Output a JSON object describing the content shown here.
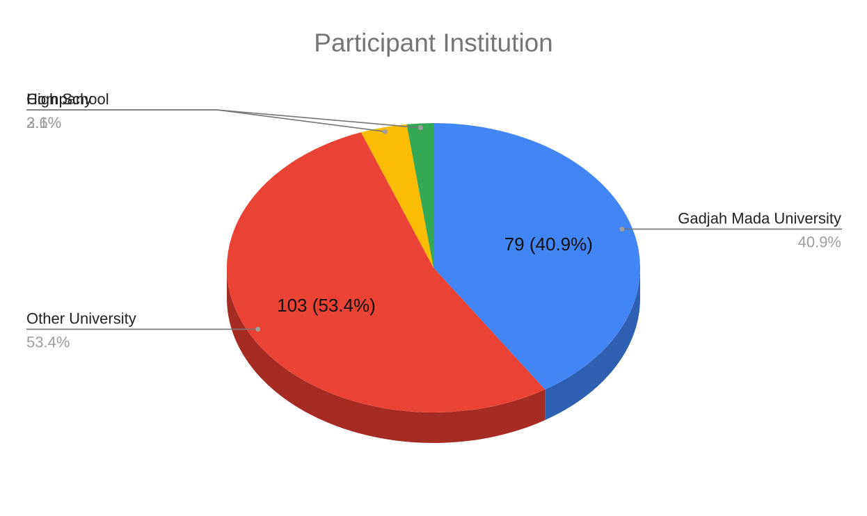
{
  "chart_data": {
    "type": "pie",
    "style": "3d",
    "title": "Participant Institution",
    "slices": [
      {
        "label": "Gadjah Mada University",
        "value": 79,
        "percent_label": "40.9%",
        "inside_label": "79 (40.9%)",
        "color": "#4285f4",
        "side_color": "#2f5fb0"
      },
      {
        "label": "Other University",
        "value": 103,
        "percent_label": "53.4%",
        "inside_label": "103 (53.4%)",
        "color": "#ea4335",
        "side_color": "#a52b23"
      },
      {
        "label": "High School",
        "value": 7,
        "percent_label": "3.6%",
        "inside_label": "",
        "color": "#fbbc04",
        "side_color": "#b88900"
      },
      {
        "label": "Company",
        "value": 4,
        "percent_label": "2.1%",
        "inside_label": "",
        "color": "#34a853",
        "side_color": "#247a3b"
      }
    ],
    "leader_line_color": "#757575"
  }
}
